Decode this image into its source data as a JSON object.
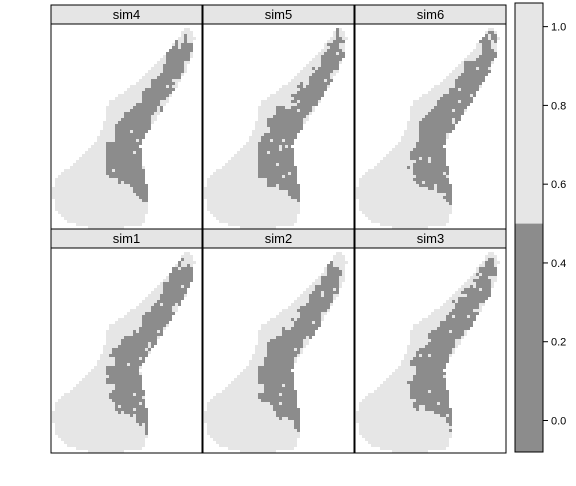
{
  "chart_data": {
    "type": "heatmap",
    "panels": [
      {
        "label": "sim4",
        "row": 0,
        "col": 0,
        "variant": 0
      },
      {
        "label": "sim5",
        "row": 0,
        "col": 1,
        "variant": 1
      },
      {
        "label": "sim6",
        "row": 0,
        "col": 2,
        "variant": 2
      },
      {
        "label": "sim1",
        "row": 1,
        "col": 0,
        "variant": 3
      },
      {
        "label": "sim2",
        "row": 1,
        "col": 1,
        "variant": 4
      },
      {
        "label": "sim3",
        "row": 1,
        "col": 2,
        "variant": 5
      }
    ],
    "colorkey": {
      "ticks": [
        "0.0",
        "0.2",
        "0.4",
        "0.6",
        "0.8",
        "1.0"
      ],
      "tick_values": [
        0.0,
        0.2,
        0.4,
        0.6,
        0.8,
        1.0
      ],
      "range": [
        -0.08,
        1.06
      ],
      "breaks": [
        -0.08,
        0.5,
        1.06
      ],
      "colors": [
        "#8c8c8c",
        "#e6e6e6"
      ]
    },
    "colors": {
      "low": "#8c8c8c",
      "high": "#e6e6e6",
      "strip_bg": "#e5e5e5",
      "border": "#000000"
    },
    "legend_position": "right",
    "grid": false
  }
}
